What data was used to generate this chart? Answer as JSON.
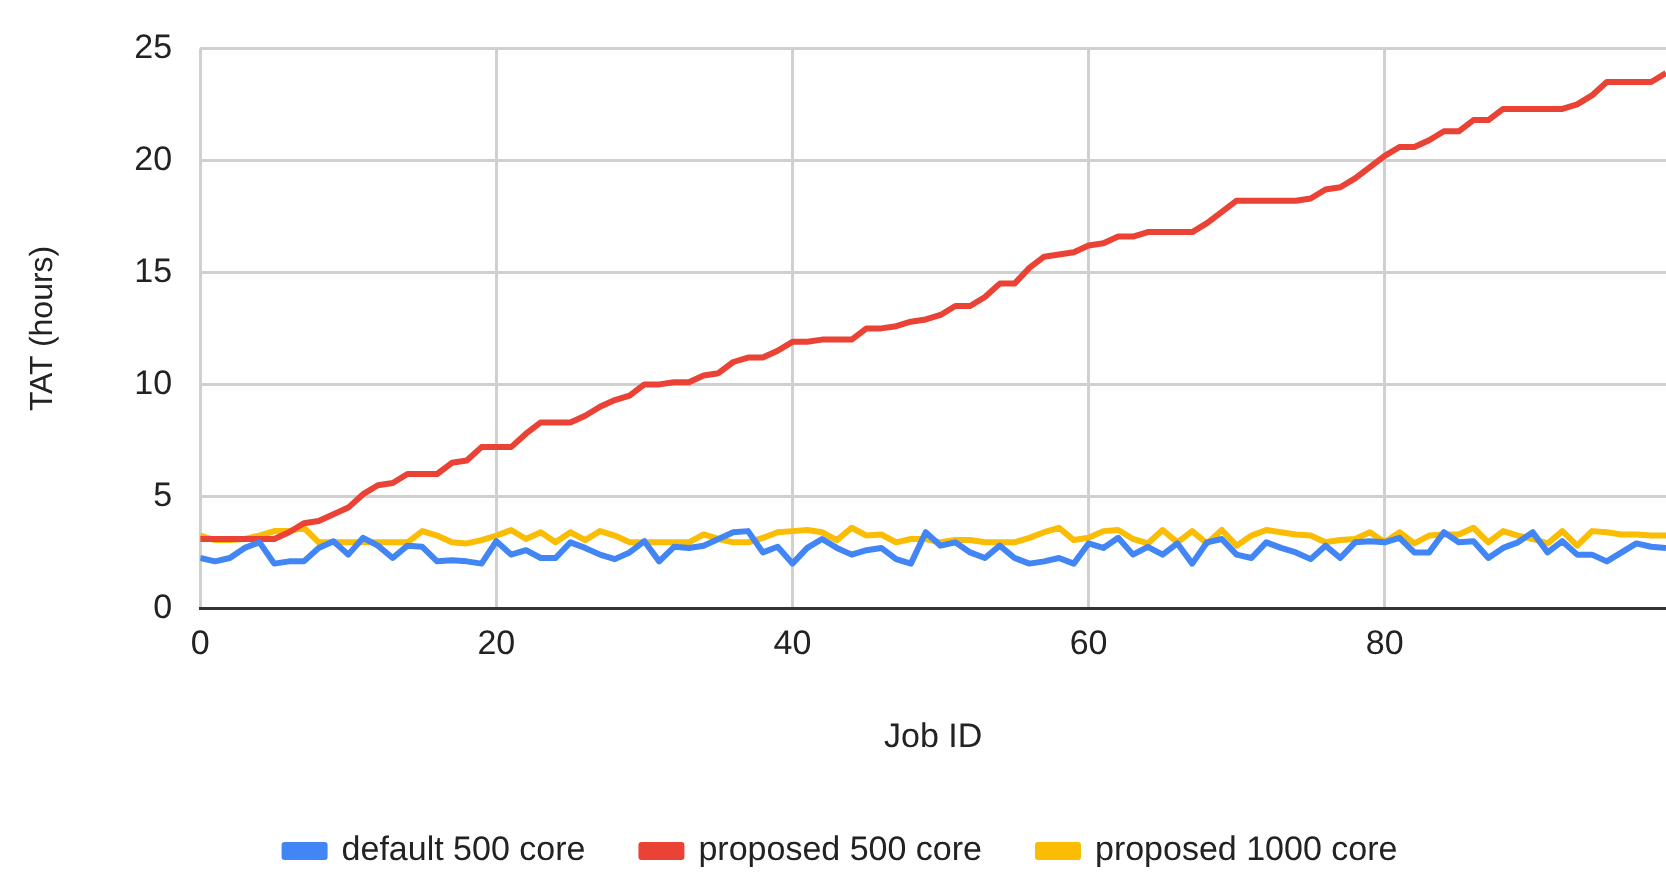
{
  "chart_data": {
    "type": "line",
    "xlabel": "Job ID",
    "ylabel": "TAT (hours)",
    "x": [
      0,
      1,
      2,
      3,
      4,
      5,
      6,
      7,
      8,
      9,
      10,
      11,
      12,
      13,
      14,
      15,
      16,
      17,
      18,
      19,
      20,
      21,
      22,
      23,
      24,
      25,
      26,
      27,
      28,
      29,
      30,
      31,
      32,
      33,
      34,
      35,
      36,
      37,
      38,
      39,
      40,
      41,
      42,
      43,
      44,
      45,
      46,
      47,
      48,
      49,
      50,
      51,
      52,
      53,
      54,
      55,
      56,
      57,
      58,
      59,
      60,
      61,
      62,
      63,
      64,
      65,
      66,
      67,
      68,
      69,
      70,
      71,
      72,
      73,
      74,
      75,
      76,
      77,
      78,
      79,
      80,
      81,
      82,
      83,
      84,
      85,
      86,
      87,
      88,
      89,
      90,
      91,
      92,
      93,
      94,
      95,
      96,
      97,
      98,
      99
    ],
    "series": [
      {
        "name": "default 500 core",
        "color": "#4285f4",
        "values": [
          2.25,
          2.1,
          2.25,
          2.7,
          2.95,
          2.0,
          2.1,
          2.1,
          2.7,
          3.0,
          2.4,
          3.15,
          2.8,
          2.25,
          2.8,
          2.75,
          2.1,
          2.15,
          2.1,
          2.0,
          3.0,
          2.4,
          2.6,
          2.25,
          2.25,
          2.95,
          2.7,
          2.4,
          2.2,
          2.5,
          3.0,
          2.1,
          2.75,
          2.7,
          2.8,
          3.1,
          3.4,
          3.45,
          2.5,
          2.75,
          2.0,
          2.7,
          3.1,
          2.7,
          2.4,
          2.6,
          2.7,
          2.2,
          2.0,
          3.4,
          2.8,
          2.95,
          2.5,
          2.25,
          2.8,
          2.25,
          2.0,
          2.1,
          2.25,
          2.0,
          2.9,
          2.7,
          3.15,
          2.4,
          2.75,
          2.4,
          2.9,
          2.0,
          2.95,
          3.1,
          2.4,
          2.25,
          2.95,
          2.7,
          2.5,
          2.2,
          2.8,
          2.25,
          2.95,
          3.0,
          2.95,
          3.15,
          2.5,
          2.5,
          3.4,
          2.95,
          3.0,
          2.25,
          2.7,
          2.95,
          3.4,
          2.5,
          3.0,
          2.4,
          2.4,
          2.1,
          2.5,
          2.9,
          2.75,
          2.7
        ]
      },
      {
        "name": "proposed 500 core",
        "color": "#ea4335",
        "values": [
          3.1,
          3.1,
          3.1,
          3.1,
          3.1,
          3.1,
          3.4,
          3.8,
          3.9,
          4.2,
          4.5,
          5.1,
          5.5,
          5.6,
          6.0,
          6.0,
          6.0,
          6.5,
          6.6,
          7.2,
          7.2,
          7.2,
          7.8,
          8.3,
          8.3,
          8.3,
          8.6,
          9.0,
          9.3,
          9.5,
          10.0,
          10.0,
          10.1,
          10.1,
          10.4,
          10.5,
          11.0,
          11.2,
          11.2,
          11.5,
          11.9,
          11.9,
          12.0,
          12.0,
          12.0,
          12.5,
          12.5,
          12.6,
          12.8,
          12.9,
          13.1,
          13.5,
          13.5,
          13.9,
          14.5,
          14.5,
          15.2,
          15.7,
          15.8,
          15.9,
          16.2,
          16.3,
          16.6,
          16.6,
          16.8,
          16.8,
          16.8,
          16.8,
          17.2,
          17.7,
          18.2,
          18.2,
          18.2,
          18.2,
          18.2,
          18.3,
          18.7,
          18.8,
          19.2,
          19.7,
          20.2,
          20.6,
          20.6,
          20.9,
          21.3,
          21.3,
          21.8,
          21.8,
          22.3,
          22.3,
          22.3,
          22.3,
          22.3,
          22.5,
          22.9,
          23.5,
          23.5,
          23.5,
          23.5,
          23.9
        ]
      },
      {
        "name": "proposed 1000 core",
        "color": "#fbbc04",
        "values": [
          3.25,
          3.05,
          3.05,
          3.1,
          3.25,
          3.45,
          3.45,
          3.6,
          2.95,
          2.95,
          2.95,
          2.95,
          2.95,
          2.95,
          2.95,
          3.45,
          3.25,
          2.95,
          2.9,
          3.05,
          3.25,
          3.5,
          3.1,
          3.4,
          2.95,
          3.4,
          3.05,
          3.45,
          3.25,
          2.95,
          2.95,
          2.95,
          2.95,
          2.95,
          3.3,
          3.1,
          2.95,
          2.95,
          3.15,
          3.4,
          3.45,
          3.5,
          3.4,
          3.05,
          3.6,
          3.25,
          3.3,
          2.95,
          3.1,
          3.1,
          2.95,
          3.05,
          3.05,
          2.95,
          2.95,
          2.95,
          3.15,
          3.4,
          3.6,
          3.05,
          3.15,
          3.45,
          3.5,
          3.1,
          2.9,
          3.5,
          2.95,
          3.45,
          2.9,
          3.5,
          2.8,
          3.25,
          3.5,
          3.4,
          3.3,
          3.25,
          2.95,
          3.05,
          3.1,
          3.4,
          2.95,
          3.4,
          2.9,
          3.25,
          3.3,
          3.3,
          3.6,
          2.95,
          3.45,
          3.25,
          3.1,
          2.9,
          3.45,
          2.8,
          3.45,
          3.4,
          3.3,
          3.3,
          3.25,
          3.25
        ]
      }
    ],
    "xlim": [
      0,
      99
    ],
    "xticks": [
      0,
      20,
      40,
      60,
      80
    ],
    "ylim": [
      0,
      25
    ],
    "yticks": [
      0,
      5,
      10,
      15,
      20,
      25
    ],
    "grid": true,
    "legend": "bottom",
    "marker": "none",
    "line_style": "solid"
  }
}
